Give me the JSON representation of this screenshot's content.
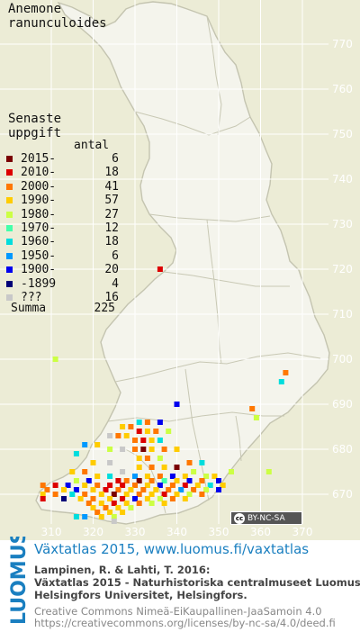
{
  "species": [
    "Anemone",
    "ranunculoides"
  ],
  "legend": {
    "title": [
      "Senaste",
      "uppgift"
    ],
    "count_header": "antal",
    "rows": [
      {
        "label": "2015-",
        "count": "6",
        "color": "#7a0000"
      },
      {
        "label": "2010-",
        "count": "18",
        "color": "#dd0000"
      },
      {
        "label": "2000-",
        "count": "41",
        "color": "#ff7700"
      },
      {
        "label": "1990-",
        "count": "57",
        "color": "#ffcc00"
      },
      {
        "label": "1980-",
        "count": "27",
        "color": "#ccff44"
      },
      {
        "label": "1970-",
        "count": "12",
        "color": "#44ffaa"
      },
      {
        "label": "1960-",
        "count": "18",
        "color": "#00dddd"
      },
      {
        "label": "1950-",
        "count": "6",
        "color": "#0099ff"
      },
      {
        "label": "1900-",
        "count": "20",
        "color": "#0000ee"
      },
      {
        "label": "-1899",
        "count": "4",
        "color": "#000077"
      },
      {
        "label": "???",
        "count": "16",
        "color": "#c8c8c8"
      }
    ],
    "sum_label": "Summa",
    "sum_value": "225"
  },
  "grid": {
    "x_labels": [
      "310",
      "320",
      "330",
      "340",
      "350",
      "360",
      "370"
    ],
    "y_labels": [
      "770",
      "760",
      "750",
      "740",
      "730",
      "720",
      "710",
      "700",
      "690",
      "680",
      "670"
    ]
  },
  "license_badge": "BY-NC-SA",
  "footer": {
    "logo_text": "LUOMUS",
    "atlas_title": "Växtatlas 2015, www.luomus.fi/vaxtatlas",
    "citation": [
      "Lampinen, R. & Lahti, T. 2016:",
      "Växtatlas 2015 - Naturhistoriska centralmuseet Luomus,",
      "Helsingfors Universitet, Helsingfors."
    ],
    "license": [
      "Creative Commons Nimeä-EiKaupallinen-JaaSamoin 4.0",
      "https://creativecommons.org/licenses/by-nc-sa/4.0/deed.fi"
    ]
  },
  "records": [
    {
      "e": 336,
      "n": 720,
      "period": "2010-"
    },
    {
      "e": 311,
      "n": 700,
      "period": "1980-"
    },
    {
      "e": 366,
      "n": 697,
      "period": "2000-"
    },
    {
      "e": 365,
      "n": 695,
      "period": "1960-"
    },
    {
      "e": 340,
      "n": 690,
      "period": "1900-"
    },
    {
      "e": 358,
      "n": 689,
      "period": "2000-"
    },
    {
      "e": 359,
      "n": 687,
      "period": "1980-"
    },
    {
      "e": 331,
      "n": 686,
      "period": "1960-"
    },
    {
      "e": 333,
      "n": 686,
      "period": "2000-"
    },
    {
      "e": 336,
      "n": 686,
      "period": "1900-"
    },
    {
      "e": 327,
      "n": 685,
      "period": "1990-"
    },
    {
      "e": 329,
      "n": 685,
      "period": "2000-"
    },
    {
      "e": 331,
      "n": 684,
      "period": "2010-"
    },
    {
      "e": 333,
      "n": 684,
      "period": "1990-"
    },
    {
      "e": 335,
      "n": 684,
      "period": "2000-"
    },
    {
      "e": 338,
      "n": 684,
      "period": "1980-"
    },
    {
      "e": 324,
      "n": 683,
      "period": "???"
    },
    {
      "e": 326,
      "n": 683,
      "period": "2000-"
    },
    {
      "e": 328,
      "n": 683,
      "period": "1990-"
    },
    {
      "e": 330,
      "n": 682,
      "period": "2000-"
    },
    {
      "e": 332,
      "n": 682,
      "period": "2010-"
    },
    {
      "e": 334,
      "n": 682,
      "period": "1990-"
    },
    {
      "e": 336,
      "n": 682,
      "period": "1960-"
    },
    {
      "e": 318,
      "n": 681,
      "period": "1950-"
    },
    {
      "e": 321,
      "n": 681,
      "period": "1990-"
    },
    {
      "e": 324,
      "n": 680,
      "period": "1980-"
    },
    {
      "e": 327,
      "n": 680,
      "period": "???"
    },
    {
      "e": 330,
      "n": 680,
      "period": "2000-"
    },
    {
      "e": 332,
      "n": 680,
      "period": "2015-"
    },
    {
      "e": 334,
      "n": 680,
      "period": "1990-"
    },
    {
      "e": 337,
      "n": 680,
      "period": "2000-"
    },
    {
      "e": 340,
      "n": 680,
      "period": "1990-"
    },
    {
      "e": 316,
      "n": 679,
      "period": "1960-"
    },
    {
      "e": 331,
      "n": 678,
      "period": "1990-"
    },
    {
      "e": 333,
      "n": 678,
      "period": "2000-"
    },
    {
      "e": 336,
      "n": 678,
      "period": "1980-"
    },
    {
      "e": 320,
      "n": 677,
      "period": "1990-"
    },
    {
      "e": 324,
      "n": 677,
      "period": "???"
    },
    {
      "e": 343,
      "n": 677,
      "period": "2000-"
    },
    {
      "e": 346,
      "n": 677,
      "period": "1960-"
    },
    {
      "e": 331,
      "n": 676,
      "period": "1990-"
    },
    {
      "e": 334,
      "n": 676,
      "period": "2000-"
    },
    {
      "e": 337,
      "n": 676,
      "period": "1990-"
    },
    {
      "e": 340,
      "n": 676,
      "period": "2015-"
    },
    {
      "e": 315,
      "n": 675,
      "period": "1990-"
    },
    {
      "e": 318,
      "n": 675,
      "period": "2000-"
    },
    {
      "e": 327,
      "n": 675,
      "period": "???"
    },
    {
      "e": 344,
      "n": 675,
      "period": "1980-"
    },
    {
      "e": 353,
      "n": 675,
      "period": "1980-"
    },
    {
      "e": 362,
      "n": 675,
      "period": "1980-"
    },
    {
      "e": 321,
      "n": 674,
      "period": "1990-"
    },
    {
      "e": 324,
      "n": 674,
      "period": "1960-"
    },
    {
      "e": 330,
      "n": 674,
      "period": "1950-"
    },
    {
      "e": 333,
      "n": 674,
      "period": "1990-"
    },
    {
      "e": 336,
      "n": 674,
      "period": "2000-"
    },
    {
      "e": 339,
      "n": 674,
      "period": "1900-"
    },
    {
      "e": 342,
      "n": 674,
      "period": "1990-"
    },
    {
      "e": 347,
      "n": 674,
      "period": "1980-"
    },
    {
      "e": 349,
      "n": 674,
      "period": "1990-"
    },
    {
      "e": 316,
      "n": 673,
      "period": "1980-"
    },
    {
      "e": 319,
      "n": 673,
      "period": "1900-"
    },
    {
      "e": 326,
      "n": 673,
      "period": "2010-"
    },
    {
      "e": 328,
      "n": 673,
      "period": "2000-"
    },
    {
      "e": 331,
      "n": 673,
      "period": "2015-"
    },
    {
      "e": 334,
      "n": 673,
      "period": "2000-"
    },
    {
      "e": 337,
      "n": 673,
      "period": "1970-"
    },
    {
      "e": 340,
      "n": 673,
      "period": "1990-"
    },
    {
      "e": 343,
      "n": 673,
      "period": "1900-"
    },
    {
      "e": 346,
      "n": 673,
      "period": "2000-"
    },
    {
      "e": 350,
      "n": 673,
      "period": "1900-"
    },
    {
      "e": 308,
      "n": 672,
      "period": "2000-"
    },
    {
      "e": 311,
      "n": 672,
      "period": "2010-"
    },
    {
      "e": 314,
      "n": 672,
      "period": "1900-"
    },
    {
      "e": 318,
      "n": 672,
      "period": "1990-"
    },
    {
      "e": 321,
      "n": 672,
      "period": "2000-"
    },
    {
      "e": 324,
      "n": 672,
      "period": "2010-"
    },
    {
      "e": 327,
      "n": 672,
      "period": "2010-"
    },
    {
      "e": 330,
      "n": 672,
      "period": "2000-"
    },
    {
      "e": 333,
      "n": 672,
      "period": "1990-"
    },
    {
      "e": 336,
      "n": 672,
      "period": "1900-"
    },
    {
      "e": 339,
      "n": 672,
      "period": "2000-"
    },
    {
      "e": 342,
      "n": 672,
      "period": "2010-"
    },
    {
      "e": 345,
      "n": 672,
      "period": "1990-"
    },
    {
      "e": 348,
      "n": 672,
      "period": "1960-"
    },
    {
      "e": 351,
      "n": 672,
      "period": "1990-"
    },
    {
      "e": 309,
      "n": 671,
      "period": "2000-"
    },
    {
      "e": 313,
      "n": 671,
      "period": "1990-"
    },
    {
      "e": 316,
      "n": 671,
      "period": "1900-"
    },
    {
      "e": 320,
      "n": 671,
      "period": "1990-"
    },
    {
      "e": 323,
      "n": 671,
      "period": "2010-"
    },
    {
      "e": 326,
      "n": 671,
      "period": "2000-"
    },
    {
      "e": 329,
      "n": 671,
      "period": "1990-"
    },
    {
      "e": 332,
      "n": 671,
      "period": "2000-"
    },
    {
      "e": 335,
      "n": 671,
      "period": "1990-"
    },
    {
      "e": 338,
      "n": 671,
      "period": "2000-"
    },
    {
      "e": 341,
      "n": 671,
      "period": "1950-"
    },
    {
      "e": 344,
      "n": 671,
      "period": "2000-"
    },
    {
      "e": 347,
      "n": 671,
      "period": "1980-"
    },
    {
      "e": 350,
      "n": 671,
      "period": "1900-"
    },
    {
      "e": 308,
      "n": 670,
      "period": "1990-"
    },
    {
      "e": 311,
      "n": 670,
      "period": "2000-"
    },
    {
      "e": 315,
      "n": 670,
      "period": "1960-"
    },
    {
      "e": 318,
      "n": 670,
      "period": "2000-"
    },
    {
      "e": 322,
      "n": 670,
      "period": "1990-"
    },
    {
      "e": 325,
      "n": 670,
      "period": "2015-"
    },
    {
      "e": 328,
      "n": 670,
      "period": "1990-"
    },
    {
      "e": 331,
      "n": 670,
      "period": "2000-"
    },
    {
      "e": 334,
      "n": 670,
      "period": "1990-"
    },
    {
      "e": 337,
      "n": 670,
      "period": "2010-"
    },
    {
      "e": 340,
      "n": 670,
      "period": "1990-"
    },
    {
      "e": 343,
      "n": 670,
      "period": "1980-"
    },
    {
      "e": 346,
      "n": 670,
      "period": "2000-"
    },
    {
      "e": 308,
      "n": 669,
      "period": "2010-"
    },
    {
      "e": 313,
      "n": 669,
      "period": "-1899"
    },
    {
      "e": 317,
      "n": 669,
      "period": "1990-"
    },
    {
      "e": 320,
      "n": 669,
      "period": "2000-"
    },
    {
      "e": 324,
      "n": 669,
      "period": "1990-"
    },
    {
      "e": 327,
      "n": 669,
      "period": "2010-"
    },
    {
      "e": 330,
      "n": 669,
      "period": "1900-"
    },
    {
      "e": 333,
      "n": 669,
      "period": "1990-"
    },
    {
      "e": 336,
      "n": 669,
      "period": "1980-"
    },
    {
      "e": 339,
      "n": 669,
      "period": "2000-"
    },
    {
      "e": 342,
      "n": 669,
      "period": "1990-"
    },
    {
      "e": 319,
      "n": 668,
      "period": "2000-"
    },
    {
      "e": 322,
      "n": 668,
      "period": "1990-"
    },
    {
      "e": 325,
      "n": 668,
      "period": "2010-"
    },
    {
      "e": 328,
      "n": 668,
      "period": "1990-"
    },
    {
      "e": 331,
      "n": 668,
      "period": "2000-"
    },
    {
      "e": 334,
      "n": 668,
      "period": "1980-"
    },
    {
      "e": 337,
      "n": 668,
      "period": "1990-"
    },
    {
      "e": 320,
      "n": 667,
      "period": "1990-"
    },
    {
      "e": 323,
      "n": 667,
      "period": "2000-"
    },
    {
      "e": 326,
      "n": 667,
      "period": "1990-"
    },
    {
      "e": 329,
      "n": 667,
      "period": "1980-"
    },
    {
      "e": 321,
      "n": 666,
      "period": "2000-"
    },
    {
      "e": 324,
      "n": 666,
      "period": "1990-"
    },
    {
      "e": 327,
      "n": 666,
      "period": "1990-"
    },
    {
      "e": 316,
      "n": 665,
      "period": "1960-"
    },
    {
      "e": 318,
      "n": 665,
      "period": "1950-"
    },
    {
      "e": 322,
      "n": 665,
      "period": "1990-"
    },
    {
      "e": 325,
      "n": 665,
      "period": "1980-"
    },
    {
      "e": 325,
      "n": 664,
      "period": "???"
    }
  ]
}
